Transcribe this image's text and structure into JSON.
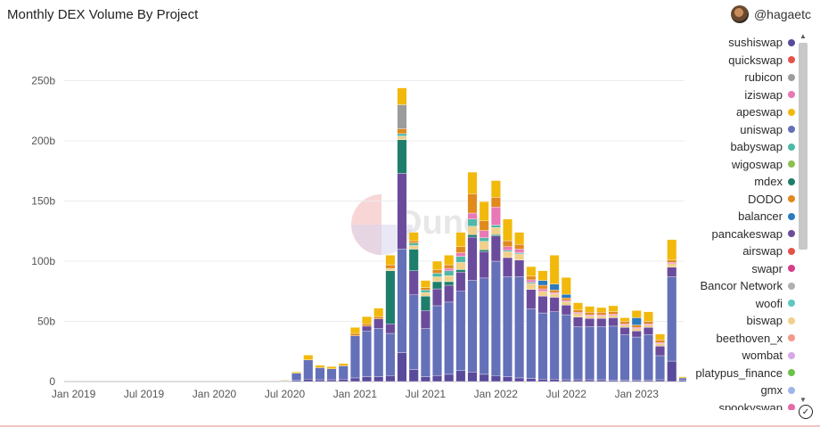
{
  "header": {
    "title": "Monthly DEX Volume By Project",
    "author": "@hagaetc"
  },
  "chart_data": {
    "type": "bar",
    "stacked": true,
    "title": "Monthly DEX Volume By Project",
    "ylim": [
      0,
      280
    ],
    "yticks": [
      0,
      50,
      100,
      150,
      200,
      250
    ],
    "ytick_labels": [
      "0",
      "50b",
      "100b",
      "150b",
      "200b",
      "250b"
    ],
    "x_start": "2019-01",
    "xtick_labels": [
      "Jan 2019",
      "Jul 2019",
      "Jan 2020",
      "Jul 2020",
      "Jan 2021",
      "Jul 2021",
      "Jan 2022",
      "Jul 2022",
      "Jan 2023"
    ],
    "categories": [
      "2019-01",
      "2019-02",
      "2019-03",
      "2019-04",
      "2019-05",
      "2019-06",
      "2019-07",
      "2019-08",
      "2019-09",
      "2019-10",
      "2019-11",
      "2019-12",
      "2020-01",
      "2020-02",
      "2020-03",
      "2020-04",
      "2020-05",
      "2020-06",
      "2020-07",
      "2020-08",
      "2020-09",
      "2020-10",
      "2020-11",
      "2020-12",
      "2021-01",
      "2021-02",
      "2021-03",
      "2021-04",
      "2021-05",
      "2021-06",
      "2021-07",
      "2021-08",
      "2021-09",
      "2021-10",
      "2021-11",
      "2021-12",
      "2022-01",
      "2022-02",
      "2022-03",
      "2022-04",
      "2022-05",
      "2022-06",
      "2022-07",
      "2022-08",
      "2022-09",
      "2022-10",
      "2022-11",
      "2022-12",
      "2023-01",
      "2023-02",
      "2023-03",
      "2023-04",
      "2023-05"
    ],
    "series": [
      {
        "name": "sushiswap",
        "color": "#5a4a9c",
        "values": [
          0,
          0,
          0,
          0,
          0,
          0,
          0,
          0,
          0,
          0,
          0,
          0,
          0,
          0,
          0,
          0,
          0,
          0,
          0.3,
          1,
          2,
          1.5,
          1.5,
          2,
          3,
          4,
          4,
          5,
          24,
          10,
          4,
          5,
          6,
          9,
          8,
          6,
          5,
          4,
          3,
          2.5,
          2,
          2,
          1.5,
          1.5,
          1.5,
          1.5,
          1,
          1,
          1,
          1,
          1.5,
          17,
          1
        ]
      },
      {
        "name": "uniswap",
        "color": "#6470b8",
        "values": [
          0,
          0,
          0,
          0,
          0,
          0,
          0,
          0,
          0,
          0,
          0,
          0,
          0,
          0,
          0,
          0,
          0,
          0,
          0.5,
          6,
          16,
          10,
          9,
          11,
          35,
          38,
          40,
          35,
          86,
          62,
          40,
          58,
          60,
          66,
          76,
          80,
          95,
          83,
          84,
          58,
          55,
          56,
          54,
          44,
          44,
          44,
          45,
          38,
          36,
          38,
          20,
          70,
          2
        ]
      },
      {
        "name": "pancakeswap",
        "color": "#6b4c9c",
        "values": [
          0,
          0,
          0,
          0,
          0,
          0,
          0,
          0,
          0,
          0,
          0,
          0,
          0,
          0,
          0,
          0,
          0,
          0,
          0,
          0,
          0,
          0,
          0,
          0,
          0,
          4,
          8,
          8,
          63,
          20,
          15,
          14,
          14,
          16,
          36,
          22,
          21,
          16,
          14,
          16,
          14,
          12,
          8,
          8,
          7,
          7,
          7,
          6,
          5,
          6,
          8,
          8,
          0
        ]
      },
      {
        "name": "mdex",
        "color": "#1e7e6b",
        "values": [
          0,
          0,
          0,
          0,
          0,
          0,
          0,
          0,
          0,
          0,
          0,
          0,
          0,
          0,
          0,
          0,
          0,
          0,
          0,
          0,
          0,
          0,
          0,
          0,
          0,
          0,
          0,
          44,
          28,
          18,
          12,
          6,
          3,
          2,
          2,
          1.5,
          1,
          0,
          0,
          0,
          0,
          0,
          0,
          0,
          0,
          0,
          0,
          0,
          0,
          0,
          0,
          0,
          0
        ]
      },
      {
        "name": "biswap",
        "color": "#f0d08c",
        "values": [
          0,
          0,
          0,
          0,
          0,
          0,
          0,
          0,
          0,
          0,
          0,
          0,
          0,
          0,
          0,
          0,
          0,
          0,
          0,
          0,
          0,
          0,
          0,
          0,
          0,
          0,
          0,
          2,
          3,
          3,
          3,
          4,
          5,
          6,
          7,
          7,
          6,
          5,
          5,
          5,
          4,
          3,
          3,
          3,
          2,
          2,
          2,
          2,
          2,
          2,
          2,
          3,
          0
        ]
      },
      {
        "name": "babyswap",
        "color": "#4fb8a8",
        "values": [
          0,
          0,
          0,
          0,
          0,
          0,
          0,
          0,
          0,
          0,
          0,
          0,
          0,
          0,
          0,
          0,
          0,
          0,
          0,
          0,
          0,
          0,
          0,
          0,
          0,
          0,
          0,
          0,
          2,
          2,
          2,
          3,
          4,
          5,
          6,
          3,
          2,
          1,
          1,
          1,
          0,
          0,
          0,
          0,
          0,
          0,
          0,
          0,
          0,
          0,
          0,
          0,
          0
        ]
      },
      {
        "name": "iziswap",
        "color": "#e879b6",
        "values": [
          0,
          0,
          0,
          0,
          0,
          0,
          0,
          0,
          0,
          0,
          0,
          0,
          0,
          0,
          0,
          0,
          0,
          0,
          0,
          0,
          0,
          0,
          0,
          0,
          0,
          0,
          0,
          0,
          0,
          0,
          0,
          0,
          2,
          3,
          5,
          6,
          15,
          3,
          3,
          2,
          2,
          1,
          1,
          1,
          1,
          1,
          1,
          1,
          1,
          1,
          1,
          1,
          0
        ]
      },
      {
        "name": "DODO",
        "color": "#e08a1e",
        "values": [
          0,
          0,
          0,
          0,
          0,
          0,
          0,
          0,
          0,
          0,
          0,
          0,
          0,
          0,
          0,
          0,
          0,
          0,
          0,
          0,
          0,
          0,
          0,
          0,
          2,
          2,
          2,
          3,
          4,
          2,
          2,
          3,
          3,
          5,
          16,
          8,
          8,
          5,
          4,
          3,
          3,
          2,
          2,
          2,
          2,
          2,
          2,
          2,
          2,
          2,
          2,
          2,
          0
        ]
      },
      {
        "name": "balancer",
        "color": "#2b7bbd",
        "values": [
          0,
          0,
          0,
          0,
          0,
          0,
          0,
          0,
          0,
          0,
          0,
          0,
          0,
          0,
          0,
          0,
          0,
          0,
          0,
          0,
          0,
          0,
          0,
          0,
          0,
          0,
          0,
          0,
          0,
          0,
          0,
          0,
          0,
          0,
          0,
          0,
          0,
          0,
          0,
          0,
          4,
          5,
          3,
          0,
          0,
          0,
          0,
          0,
          6,
          0,
          0,
          0,
          0
        ]
      },
      {
        "name": "rubicon",
        "color": "#9c9c9c",
        "values": [
          0,
          0,
          0,
          0,
          0,
          0,
          0,
          0,
          0,
          0,
          0,
          0,
          0,
          0,
          0,
          0,
          0,
          0,
          0,
          0,
          0,
          0,
          0,
          0,
          0,
          0,
          0,
          0,
          20,
          0,
          0,
          0,
          0,
          0,
          0,
          0,
          0,
          0,
          0,
          0,
          0,
          0,
          0,
          0,
          0,
          0,
          0,
          0,
          0,
          0,
          0,
          0,
          0
        ]
      },
      {
        "name": "apeswap",
        "color": "#f2b90d",
        "values": [
          0,
          0,
          0,
          0,
          0,
          0,
          0,
          0,
          0,
          0,
          0,
          0,
          0,
          0,
          0,
          0,
          0,
          0,
          0.5,
          1,
          4,
          2,
          2,
          2,
          5,
          6,
          7,
          8,
          14,
          7,
          6,
          7,
          8,
          12,
          18,
          16,
          14,
          18,
          10,
          8,
          8,
          24,
          14,
          6,
          5,
          4,
          5,
          3,
          6,
          8,
          5,
          17,
          1
        ]
      }
    ]
  },
  "legend": {
    "items": [
      {
        "label": "sushiswap",
        "color": "#5a4a9c"
      },
      {
        "label": "quickswap",
        "color": "#e5534b"
      },
      {
        "label": "rubicon",
        "color": "#9c9c9c"
      },
      {
        "label": "iziswap",
        "color": "#e879b6"
      },
      {
        "label": "apeswap",
        "color": "#f2b90d"
      },
      {
        "label": "uniswap",
        "color": "#6470b8"
      },
      {
        "label": "babyswap",
        "color": "#4fb8a8"
      },
      {
        "label": "wigoswap",
        "color": "#8cc152"
      },
      {
        "label": "mdex",
        "color": "#1e7e6b"
      },
      {
        "label": "DODO",
        "color": "#e08a1e"
      },
      {
        "label": "balancer",
        "color": "#2b7bbd"
      },
      {
        "label": "pancakeswap",
        "color": "#6b4c9c"
      },
      {
        "label": "airswap",
        "color": "#e5534b"
      },
      {
        "label": "swapr",
        "color": "#d63d8a"
      },
      {
        "label": "Bancor Network",
        "color": "#b0b0b0"
      },
      {
        "label": "woofi",
        "color": "#5ec8c0"
      },
      {
        "label": "biswap",
        "color": "#f0d08c"
      },
      {
        "label": "beethoven_x",
        "color": "#f29a8a"
      },
      {
        "label": "wombat",
        "color": "#d7a8e8"
      },
      {
        "label": "platypus_finance",
        "color": "#6cc24a"
      },
      {
        "label": "gmx",
        "color": "#9fb4ea"
      },
      {
        "label": "spookyswap",
        "color": "#e46aa6"
      }
    ]
  }
}
